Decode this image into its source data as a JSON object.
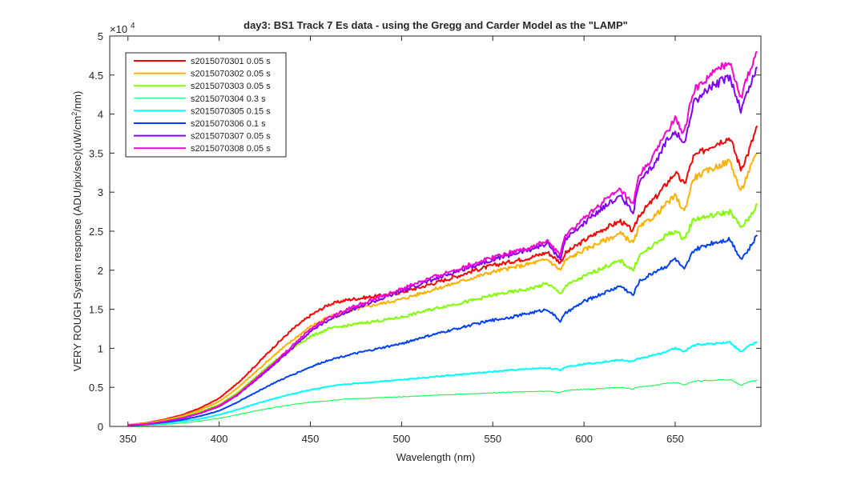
{
  "chart_data": {
    "type": "line",
    "title": "day3: BS1  Track 7 Es data - using the Gregg and Carder Model as the \"LAMP\"",
    "xlabel": "Wavelength (nm)",
    "ylabel_prefix": "VERY ROUGH System response (ADU/pix/sec)(uW/cm",
    "ylabel_sup": "2",
    "ylabel_suffix": "/nm)",
    "y_exponent_label": "×10",
    "y_exponent_power": "4",
    "xlim": [
      340,
      697
    ],
    "ylim": [
      0,
      50000
    ],
    "y_scale_factor": 10000,
    "x_ticks": [
      350,
      400,
      450,
      500,
      550,
      600,
      650
    ],
    "y_ticks": [
      0,
      5000,
      10000,
      15000,
      20000,
      25000,
      30000,
      35000,
      40000,
      45000,
      50000
    ],
    "y_tick_labels": [
      "0",
      "0.5",
      "1",
      "1.5",
      "2",
      "2.5",
      "3",
      "3.5",
      "4",
      "4.5",
      "5"
    ],
    "legend_position": "top-left",
    "grid": false,
    "x": [
      350,
      360,
      370,
      380,
      390,
      400,
      410,
      420,
      430,
      440,
      450,
      460,
      470,
      480,
      490,
      500,
      510,
      520,
      530,
      540,
      550,
      560,
      570,
      580,
      587,
      590,
      600,
      610,
      620,
      627,
      630,
      640,
      645,
      650,
      655,
      660,
      670,
      680,
      686,
      690,
      695
    ],
    "series": [
      {
        "name": "s2015070301 0.05 s",
        "color": "#ff0000",
        "width": 2,
        "values": [
          200,
          450,
          900,
          1500,
          2400,
          3600,
          5500,
          7800,
          10200,
          12400,
          14200,
          15600,
          16200,
          16500,
          16800,
          17200,
          17800,
          18500,
          19200,
          20000,
          20600,
          21100,
          21600,
          22300,
          21000,
          22200,
          23800,
          25200,
          26300,
          25000,
          27000,
          29500,
          31000,
          32500,
          31000,
          34500,
          36000,
          37000,
          33000,
          35000,
          38500
        ]
      },
      {
        "name": "s2015070302 0.05 s",
        "color": "#ffb000",
        "width": 2,
        "values": [
          180,
          400,
          800,
          1350,
          2150,
          3200,
          4900,
          7000,
          9100,
          11000,
          12800,
          14000,
          14700,
          15300,
          15800,
          16300,
          17000,
          17700,
          18400,
          19100,
          19800,
          20300,
          20800,
          21400,
          20000,
          21300,
          22600,
          23700,
          24700,
          23500,
          25400,
          27200,
          28500,
          29500,
          27500,
          31800,
          33000,
          34000,
          30000,
          32500,
          35000
        ]
      },
      {
        "name": "s2015070303 0.05 s",
        "color": "#80ff00",
        "width": 2,
        "values": [
          160,
          360,
          700,
          1200,
          1900,
          2800,
          4300,
          6300,
          8300,
          10000,
          11500,
          12500,
          12900,
          13300,
          13600,
          14000,
          14600,
          15200,
          15700,
          16200,
          16800,
          17200,
          17600,
          18300,
          17000,
          18000,
          19200,
          20300,
          21200,
          20000,
          21800,
          23500,
          24500,
          25000,
          24000,
          26500,
          27000,
          27500,
          25500,
          26500,
          28500
        ]
      },
      {
        "name": "s2015070304 0.3 s",
        "color": "#00ff40",
        "width": 1,
        "values": [
          60,
          130,
          260,
          430,
          700,
          1050,
          1500,
          2000,
          2400,
          2800,
          3100,
          3300,
          3500,
          3600,
          3700,
          3800,
          3900,
          4000,
          4100,
          4200,
          4300,
          4400,
          4450,
          4500,
          4300,
          4600,
          4750,
          4850,
          5000,
          4800,
          5050,
          5300,
          5500,
          5600,
          5300,
          5800,
          5900,
          6000,
          5300,
          5700,
          5900
        ]
      },
      {
        "name": "s2015070305 0.15 s",
        "color": "#00ffff",
        "width": 2,
        "values": [
          90,
          200,
          400,
          650,
          1000,
          1500,
          2150,
          2900,
          3550,
          4150,
          4700,
          5100,
          5400,
          5600,
          5800,
          6000,
          6200,
          6400,
          6600,
          6800,
          7000,
          7200,
          7350,
          7500,
          7200,
          7650,
          8000,
          8250,
          8500,
          8300,
          8700,
          9200,
          9600,
          10000,
          9600,
          10400,
          10600,
          10800,
          9500,
          10300,
          10800
        ]
      },
      {
        "name": "s2015070306 0.1 s",
        "color": "#0040ff",
        "width": 2,
        "values": [
          120,
          260,
          520,
          850,
          1350,
          2000,
          3100,
          4350,
          5550,
          6600,
          7600,
          8500,
          9100,
          9600,
          10100,
          10600,
          11300,
          11900,
          12500,
          13100,
          13600,
          14000,
          14500,
          15000,
          13500,
          14500,
          16000,
          17000,
          18000,
          16800,
          18500,
          20000,
          20500,
          21500,
          20000,
          22500,
          23500,
          24000,
          21500,
          22500,
          24500
        ]
      },
      {
        "name": "s2015070307 0.05 s",
        "color": "#8000ff",
        "width": 2,
        "values": [
          130,
          300,
          620,
          1050,
          1700,
          2550,
          4000,
          5900,
          7900,
          10000,
          12200,
          13600,
          14700,
          15600,
          16400,
          17300,
          18200,
          19000,
          19800,
          20600,
          21400,
          22000,
          22600,
          23400,
          21500,
          24000,
          26000,
          28000,
          29500,
          27500,
          31000,
          34000,
          36500,
          38000,
          36000,
          41500,
          43500,
          44800,
          40500,
          43000,
          46000
        ]
      },
      {
        "name": "s2015070308 0.05 s",
        "color": "#ff00d0",
        "width": 2,
        "values": [
          140,
          320,
          650,
          1100,
          1750,
          2650,
          4100,
          6100,
          8100,
          10300,
          12500,
          13900,
          15000,
          15900,
          16700,
          17600,
          18500,
          19300,
          20100,
          20900,
          21700,
          22300,
          22900,
          23700,
          22000,
          24500,
          26600,
          28700,
          30300,
          28300,
          32000,
          35300,
          37700,
          39300,
          37500,
          43000,
          45000,
          46800,
          42000,
          45000,
          48000
        ]
      }
    ]
  }
}
